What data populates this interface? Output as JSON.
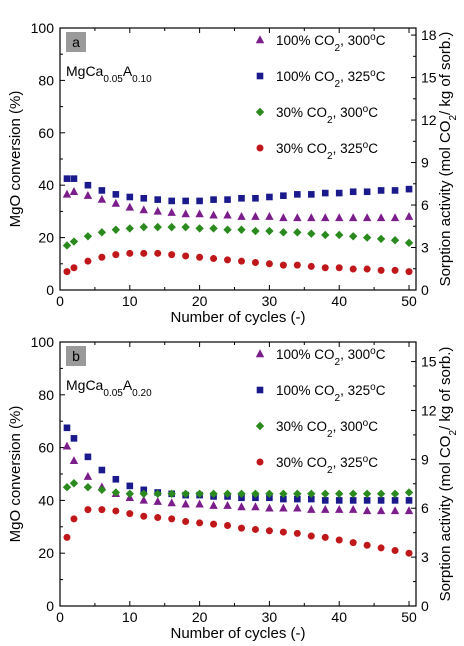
{
  "chart_data": [
    {
      "panel": "a",
      "sample": {
        "base": "MgCa",
        "sub1": "0.05",
        "mid": "A",
        "sub2": "0.10"
      },
      "type": "scatter",
      "xlabel": "Number of cycles (-)",
      "ylabel": "MgO conversion (%)",
      "y2label_pre": "Sorption activity (mol CO",
      "y2label_mid": "/ kg of sorb.)",
      "xlim": [
        0,
        51
      ],
      "ylim": [
        0,
        100
      ],
      "y2lim": [
        0,
        18.5
      ],
      "xticks": [
        0,
        10,
        20,
        30,
        40,
        50
      ],
      "yticks": [
        0,
        20,
        40,
        60,
        80,
        100
      ],
      "y2ticks": [
        0,
        3,
        6,
        9,
        12,
        15,
        18
      ],
      "series": [
        {
          "name_pre": "100% CO",
          "name_post": ", 300",
          "name_unit": "C",
          "color": "#7b1e8c",
          "marker": "triangle",
          "x": [
            1,
            2,
            4,
            6,
            8,
            10,
            12,
            14,
            16,
            18,
            20,
            22,
            24,
            26,
            28,
            30,
            32,
            34,
            36,
            38,
            40,
            42,
            44,
            46,
            48,
            50
          ],
          "y": [
            36.5,
            37.5,
            36,
            34.5,
            33,
            31.5,
            30.5,
            30,
            29.5,
            29,
            29,
            28.5,
            28.5,
            28,
            28,
            28,
            27.5,
            27.5,
            27.5,
            27.5,
            27.5,
            27.5,
            27.5,
            27.5,
            27.5,
            28
          ]
        },
        {
          "name_pre": "100% CO",
          "name_post": ", 325",
          "name_unit": "C",
          "color": "#1a1a8c",
          "marker": "square",
          "x": [
            1,
            2,
            4,
            6,
            8,
            10,
            12,
            14,
            16,
            18,
            20,
            22,
            24,
            26,
            28,
            30,
            32,
            34,
            36,
            38,
            40,
            42,
            44,
            46,
            48,
            50
          ],
          "y": [
            42.5,
            42.5,
            40,
            38,
            36.5,
            35.5,
            35,
            34.5,
            34,
            34,
            34,
            34.5,
            34.5,
            35,
            35,
            35.5,
            36,
            36.5,
            36.5,
            37,
            37,
            37.5,
            37.5,
            38,
            38,
            38.5
          ]
        },
        {
          "name_pre": "30% CO",
          "name_post": ", 300",
          "name_unit": "C",
          "color": "#2a8a1e",
          "marker": "diamond",
          "x": [
            1,
            2,
            4,
            6,
            8,
            10,
            12,
            14,
            16,
            18,
            20,
            22,
            24,
            26,
            28,
            30,
            32,
            34,
            36,
            38,
            40,
            42,
            44,
            46,
            48,
            50
          ],
          "y": [
            17,
            18.5,
            20.5,
            22,
            23,
            23.5,
            24,
            24,
            24,
            24,
            23.5,
            23.5,
            23,
            23,
            22.5,
            22.5,
            22,
            22,
            21.5,
            21,
            21,
            20.5,
            20,
            19.5,
            19,
            18
          ]
        },
        {
          "name_pre": "30% CO",
          "name_post": ", 325",
          "name_unit": "C",
          "color": "#c0181a",
          "marker": "circle",
          "x": [
            1,
            2,
            4,
            6,
            8,
            10,
            12,
            14,
            16,
            18,
            20,
            22,
            24,
            26,
            28,
            30,
            32,
            34,
            36,
            38,
            40,
            42,
            44,
            46,
            48,
            50
          ],
          "y": [
            7,
            8.5,
            11,
            12.5,
            13.5,
            14,
            14,
            14,
            13.5,
            13,
            12.5,
            12,
            11.5,
            11,
            10.5,
            10,
            9.5,
            9.5,
            9,
            8.5,
            8.5,
            8,
            8,
            7.5,
            7.5,
            7
          ]
        }
      ]
    },
    {
      "panel": "b",
      "sample": {
        "base": "MgCa",
        "sub1": "0.05",
        "mid": "A",
        "sub2": "0.20"
      },
      "type": "scatter",
      "xlabel": "Number of cycles (-)",
      "ylabel": "MgO conversion (%)",
      "y2label_pre": "Sorption activity (mol CO",
      "y2label_mid": "/ kg of sorb.)",
      "xlim": [
        0,
        51
      ],
      "ylim": [
        0,
        100
      ],
      "y2lim": [
        0,
        16.2
      ],
      "xticks": [
        0,
        10,
        20,
        30,
        40,
        50
      ],
      "yticks": [
        0,
        20,
        40,
        60,
        80,
        100
      ],
      "y2ticks": [
        0,
        3,
        6,
        9,
        12,
        15
      ],
      "series": [
        {
          "name_pre": "100% CO",
          "name_post": ", 300",
          "name_unit": "C",
          "color": "#7b1e8c",
          "marker": "triangle",
          "x": [
            1,
            2,
            4,
            6,
            8,
            10,
            12,
            14,
            16,
            18,
            20,
            22,
            24,
            26,
            28,
            30,
            32,
            34,
            36,
            38,
            40,
            42,
            44,
            46,
            48,
            50
          ],
          "y": [
            60.5,
            55,
            49,
            45,
            42.5,
            41,
            40,
            39.5,
            39,
            38.5,
            38.5,
            38,
            38,
            37.5,
            37.5,
            37,
            37,
            37,
            36.5,
            36.5,
            36.5,
            36.5,
            36,
            36,
            36,
            36
          ]
        },
        {
          "name_pre": "100% CO",
          "name_post": ", 325",
          "name_unit": "C",
          "color": "#1a1a8c",
          "marker": "square",
          "x": [
            1,
            2,
            4,
            6,
            8,
            10,
            12,
            14,
            16,
            18,
            20,
            22,
            24,
            26,
            28,
            30,
            32,
            34,
            36,
            38,
            40,
            42,
            44,
            46,
            48,
            50
          ],
          "y": [
            67.5,
            63.5,
            56.5,
            51.5,
            48,
            45.5,
            44,
            43,
            42.5,
            42,
            42,
            41.5,
            41.5,
            41,
            41,
            41,
            40.5,
            40.5,
            40.5,
            40,
            40,
            40,
            40,
            40,
            40,
            40
          ]
        },
        {
          "name_pre": "30% CO",
          "name_post": ", 300",
          "name_unit": "C",
          "color": "#2a8a1e",
          "marker": "diamond",
          "x": [
            1,
            2,
            4,
            6,
            8,
            10,
            12,
            14,
            16,
            18,
            20,
            22,
            24,
            26,
            28,
            30,
            32,
            34,
            36,
            38,
            40,
            42,
            44,
            46,
            48,
            50
          ],
          "y": [
            45,
            46.5,
            45,
            44,
            43,
            42.5,
            42.5,
            42.5,
            42.5,
            42.5,
            42.5,
            42.5,
            42.5,
            42.5,
            42.5,
            42.5,
            42.5,
            42.5,
            42.5,
            42.5,
            42.5,
            42.5,
            42.5,
            42.5,
            42.5,
            43
          ]
        },
        {
          "name_pre": "30% CO",
          "name_post": ", 325",
          "name_unit": "C",
          "color": "#c0181a",
          "marker": "circle",
          "x": [
            1,
            2,
            4,
            6,
            8,
            10,
            12,
            14,
            16,
            18,
            20,
            22,
            24,
            26,
            28,
            30,
            32,
            34,
            36,
            38,
            40,
            42,
            44,
            46,
            48,
            50
          ],
          "y": [
            26,
            33,
            36.5,
            36.5,
            36,
            35,
            34,
            33.5,
            33,
            32,
            31.5,
            31,
            30.5,
            29.5,
            29,
            28.5,
            28,
            27.5,
            26.5,
            26,
            25,
            24,
            23,
            22,
            21,
            20
          ]
        }
      ]
    }
  ]
}
